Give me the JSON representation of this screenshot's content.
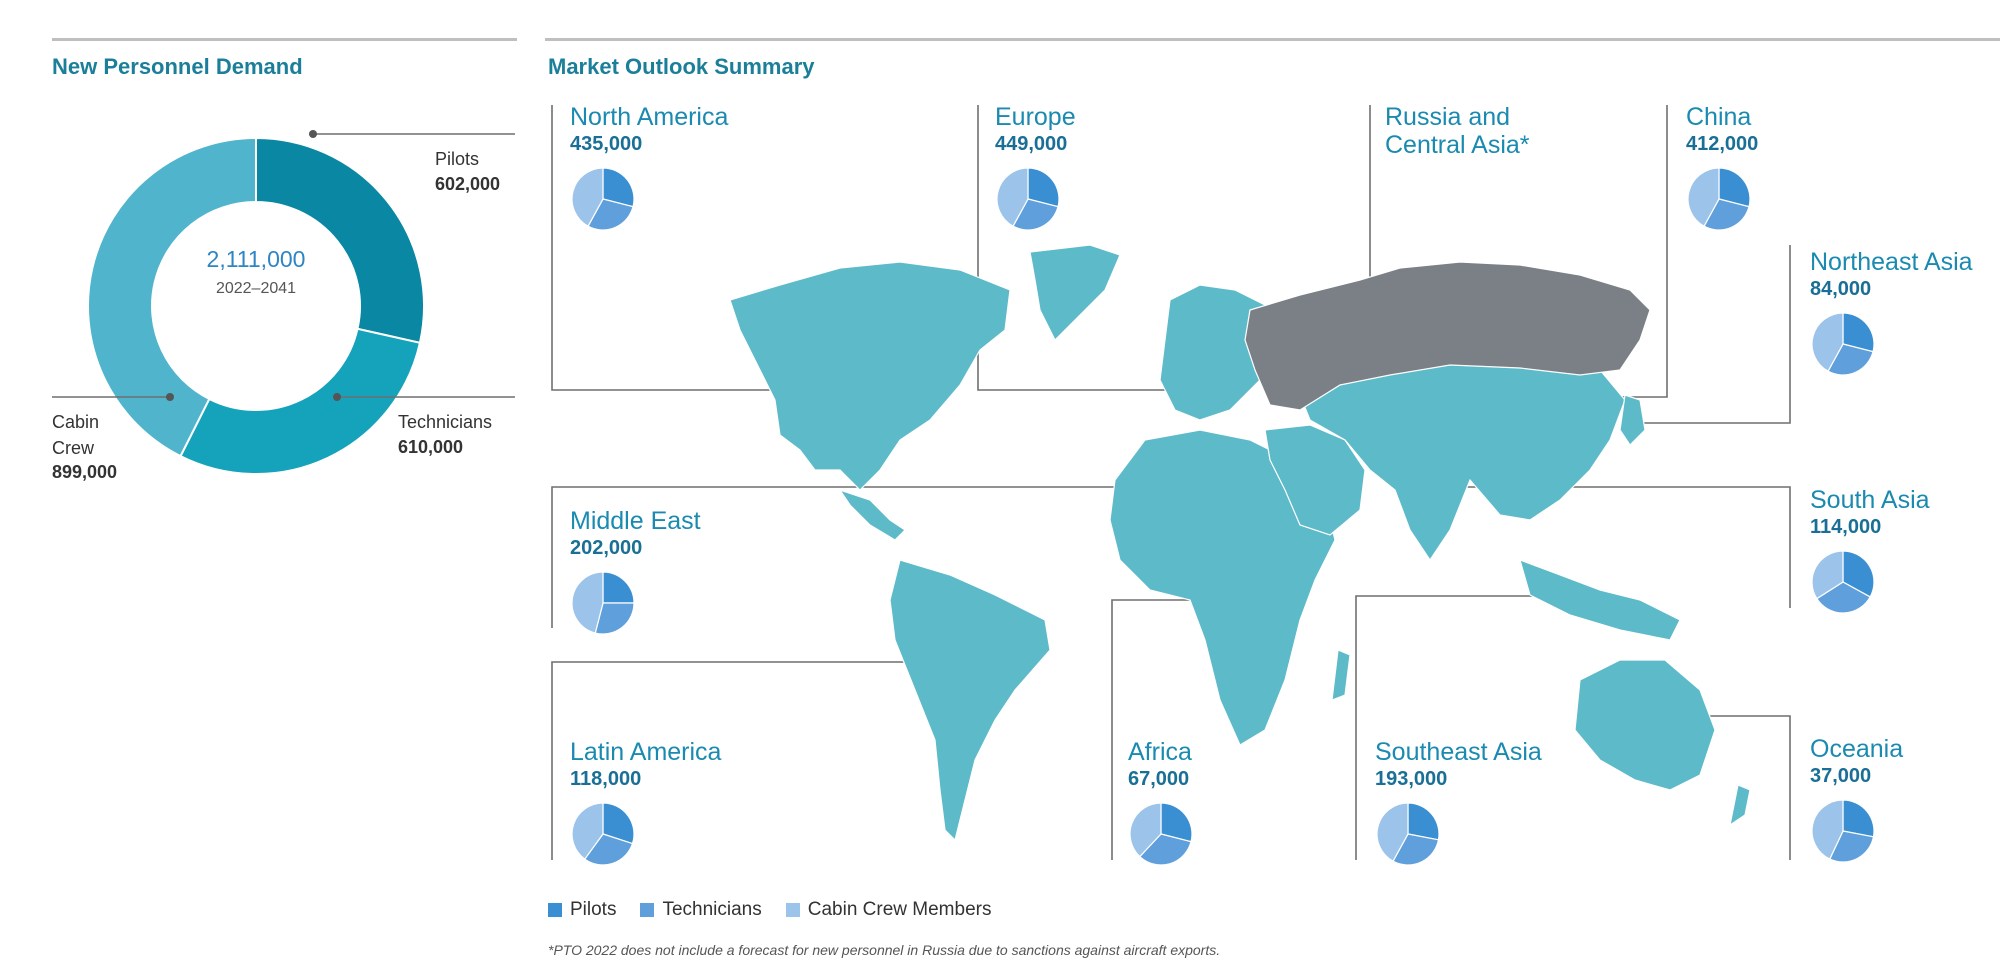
{
  "left_panel": {
    "title": "New Personnel Demand",
    "total": "2,111,000",
    "period": "2022–2041"
  },
  "right_panel": {
    "title": "Market Outlook Summary"
  },
  "colors": {
    "pilots": "#3a8fd3",
    "technicians": "#5e9fdc",
    "cabin_crew": "#9cc4ea",
    "donut_pilots": "#0a87a2",
    "donut_technicians": "#14a3bb",
    "donut_cabin": "#4fb4cc",
    "land": "#5dbac9",
    "russia": "#7b8087",
    "accent_text": "#1a8ab0"
  },
  "chart_data": [
    {
      "type": "pie",
      "title": "New Personnel Demand",
      "categories": [
        "Pilots",
        "Technicians",
        "Cabin Crew"
      ],
      "values": [
        602000,
        610000,
        899000
      ],
      "labels": [
        "Pilots 602,000",
        "Technicians 610,000",
        "Cabin Crew 899,000"
      ],
      "total": "2,111,000"
    },
    {
      "type": "pie",
      "title": "Market Outlook Summary",
      "legend": [
        "Pilots",
        "Technicians",
        "Cabin Crew Members"
      ],
      "regions": [
        {
          "name": "North America",
          "value": "435,000",
          "shares": [
            0.29,
            0.29,
            0.42
          ]
        },
        {
          "name": "Europe",
          "value": "449,000",
          "shares": [
            0.29,
            0.29,
            0.42
          ]
        },
        {
          "name": "Russia and Central Asia*",
          "value": ""
        },
        {
          "name": "China",
          "value": "412,000",
          "shares": [
            0.29,
            0.29,
            0.42
          ]
        },
        {
          "name": "Northeast Asia",
          "value": "84,000",
          "shares": [
            0.29,
            0.29,
            0.42
          ]
        },
        {
          "name": "Middle East",
          "value": "202,000",
          "shares": [
            0.25,
            0.29,
            0.46
          ]
        },
        {
          "name": "South Asia",
          "value": "114,000",
          "shares": [
            0.33,
            0.33,
            0.34
          ]
        },
        {
          "name": "Latin America",
          "value": "118,000",
          "shares": [
            0.3,
            0.3,
            0.4
          ]
        },
        {
          "name": "Africa",
          "value": "67,000",
          "shares": [
            0.29,
            0.33,
            0.38
          ]
        },
        {
          "name": "Southeast Asia",
          "value": "193,000",
          "shares": [
            0.28,
            0.3,
            0.42
          ]
        },
        {
          "name": "Oceania",
          "value": "37,000",
          "shares": [
            0.28,
            0.29,
            0.43
          ]
        }
      ]
    }
  ],
  "legend": {
    "pilots": "Pilots",
    "technicians": "Technicians",
    "cabin_crew": "Cabin Crew Members"
  },
  "footnote": "*PTO 2022 does not include a forecast for new personnel in Russia due to sanctions against aircraft exports."
}
